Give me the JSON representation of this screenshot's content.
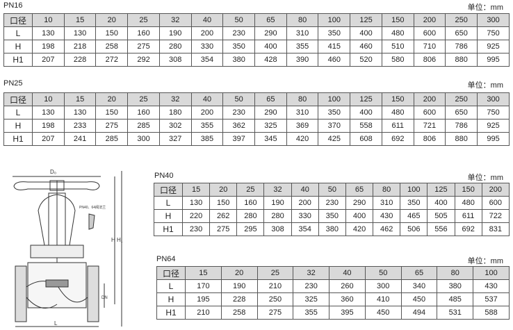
{
  "unit_label": "单位：mm",
  "row_header": "口径",
  "tables": [
    {
      "title": "PN16",
      "sizes": [
        "10",
        "15",
        "20",
        "25",
        "32",
        "40",
        "50",
        "65",
        "80",
        "100",
        "125",
        "150",
        "200",
        "250",
        "300"
      ],
      "rows": [
        {
          "label": "L",
          "values": [
            "130",
            "130",
            "150",
            "160",
            "190",
            "200",
            "230",
            "290",
            "310",
            "350",
            "400",
            "480",
            "600",
            "650",
            "750"
          ]
        },
        {
          "label": "H",
          "values": [
            "198",
            "218",
            "258",
            "275",
            "280",
            "330",
            "350",
            "400",
            "355",
            "415",
            "460",
            "510",
            "710",
            "786",
            "925"
          ]
        },
        {
          "label": "H1",
          "values": [
            "207",
            "228",
            "272",
            "292",
            "308",
            "354",
            "380",
            "428",
            "390",
            "460",
            "520",
            "580",
            "806",
            "880",
            "995"
          ]
        }
      ]
    },
    {
      "title": "PN25",
      "sizes": [
        "10",
        "15",
        "20",
        "25",
        "32",
        "40",
        "50",
        "65",
        "80",
        "100",
        "125",
        "150",
        "200",
        "250",
        "300"
      ],
      "rows": [
        {
          "label": "L",
          "values": [
            "130",
            "130",
            "150",
            "160",
            "180",
            "200",
            "230",
            "290",
            "310",
            "350",
            "400",
            "480",
            "600",
            "650",
            "750"
          ]
        },
        {
          "label": "H",
          "values": [
            "198",
            "233",
            "275",
            "285",
            "302",
            "355",
            "362",
            "325",
            "369",
            "370",
            "558",
            "611",
            "721",
            "786",
            "925"
          ]
        },
        {
          "label": "H1",
          "values": [
            "207",
            "241",
            "285",
            "300",
            "327",
            "385",
            "397",
            "345",
            "420",
            "425",
            "608",
            "692",
            "806",
            "880",
            "995"
          ]
        }
      ]
    },
    {
      "title": "PN40",
      "sizes": [
        "15",
        "20",
        "25",
        "32",
        "40",
        "50",
        "65",
        "80",
        "100",
        "125",
        "150",
        "200"
      ],
      "rows": [
        {
          "label": "L",
          "values": [
            "130",
            "150",
            "160",
            "190",
            "200",
            "230",
            "290",
            "310",
            "350",
            "400",
            "480",
            "600"
          ]
        },
        {
          "label": "H",
          "values": [
            "220",
            "262",
            "280",
            "280",
            "330",
            "350",
            "400",
            "430",
            "465",
            "505",
            "611",
            "722"
          ]
        },
        {
          "label": "H1",
          "values": [
            "230",
            "275",
            "295",
            "308",
            "354",
            "380",
            "420",
            "462",
            "506",
            "556",
            "692",
            "831"
          ]
        }
      ]
    },
    {
      "title": "PN64",
      "sizes": [
        "15",
        "20",
        "25",
        "32",
        "40",
        "50",
        "65",
        "80",
        "100"
      ],
      "rows": [
        {
          "label": "L",
          "values": [
            "170",
            "190",
            "210",
            "230",
            "260",
            "300",
            "340",
            "380",
            "430"
          ]
        },
        {
          "label": "H",
          "values": [
            "195",
            "228",
            "250",
            "325",
            "360",
            "410",
            "450",
            "485",
            "537"
          ]
        },
        {
          "label": "H1",
          "values": [
            "210",
            "258",
            "275",
            "355",
            "395",
            "450",
            "494",
            "531",
            "588"
          ]
        }
      ]
    }
  ],
  "drawing": {
    "d0": "D₀",
    "h": "H",
    "h1": "H₁",
    "dn": "DN",
    "l": "L",
    "flange_note": "PN40、64阀法兰"
  }
}
